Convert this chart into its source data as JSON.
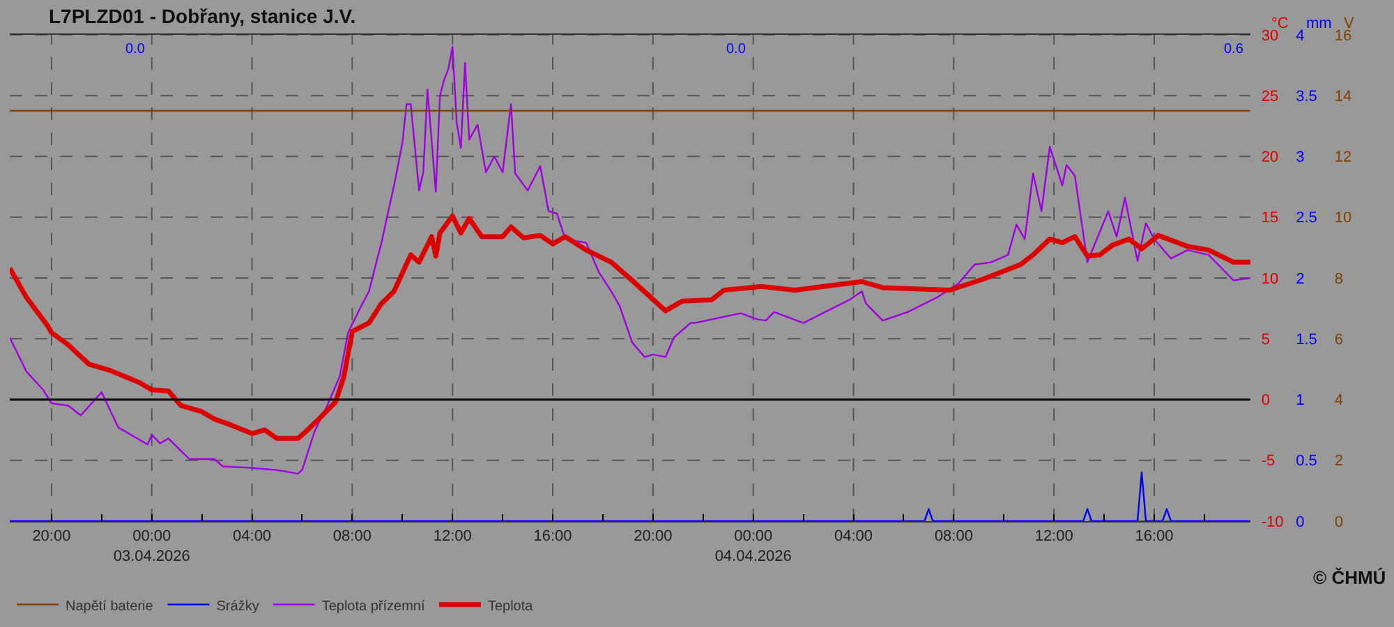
{
  "chart_data": {
    "type": "line",
    "title": "L7PLZD01 - Dobřany, stanice J.V.",
    "ylabel": "°C",
    "y2label": "mm",
    "y3label": "V",
    "xlim": [
      "2026-04-02T18:20",
      "2026-04-04T19:50"
    ],
    "xticks": [
      {
        "value": "2026-04-02T20:00",
        "label": "20:00"
      },
      {
        "value": "2026-04-02T22:00",
        "label": null
      },
      {
        "value": "2026-04-03T00:00",
        "label": "00:00\n03.04.2026"
      },
      {
        "value": "2026-04-03T02:00",
        "label": null
      },
      {
        "value": "2026-04-03T04:00",
        "label": "04:00"
      },
      {
        "value": "2026-04-03T06:00",
        "label": null
      },
      {
        "value": "2026-04-03T08:00",
        "label": "08:00"
      },
      {
        "value": "2026-04-03T10:00",
        "label": null
      },
      {
        "value": "2026-04-03T12:00",
        "label": "12:00"
      },
      {
        "value": "2026-04-03T14:00",
        "label": null
      },
      {
        "value": "2026-04-03T16:00",
        "label": "16:00"
      },
      {
        "value": "2026-04-03T18:00",
        "label": null
      },
      {
        "value": "2026-04-03T20:00",
        "label": "20:00"
      },
      {
        "value": "2026-04-03T22:00",
        "label": null
      },
      {
        "value": "2026-04-04T00:00",
        "label": "00:00\n04.04.2026"
      },
      {
        "value": "2026-04-04T02:00",
        "label": null
      },
      {
        "value": "2026-04-04T04:00",
        "label": "04:00"
      },
      {
        "value": "2026-04-04T06:00",
        "label": null
      },
      {
        "value": "2026-04-04T08:00",
        "label": "08:00"
      },
      {
        "value": "2026-04-04T10:00",
        "label": null
      },
      {
        "value": "2026-04-04T12:00",
        "label": "12:00"
      },
      {
        "value": "2026-04-04T14:00",
        "label": null
      },
      {
        "value": "2026-04-04T16:00",
        "label": "16:00"
      },
      {
        "value": "2026-04-04T18:00",
        "label": null
      }
    ],
    "ylim": [
      -10,
      30
    ],
    "yticks": [
      -10,
      -5,
      0,
      5,
      10,
      15,
      20,
      25,
      30
    ],
    "y2lim": [
      0,
      4
    ],
    "y2ticks": [
      0,
      0.5,
      1,
      1.5,
      2,
      2.5,
      3,
      3.5,
      4
    ],
    "y3lim": [
      0,
      16
    ],
    "y3ticks": [
      0,
      2,
      4,
      6,
      8,
      10,
      12,
      14,
      16
    ],
    "grid": true,
    "legend": "bottom left",
    "marker": "none",
    "line_style": "solid",
    "ref_lines": [
      {
        "axis": "y",
        "value": 0,
        "color": "#000000"
      }
    ],
    "series": [
      {
        "name": "Teplota",
        "color": "#dd0000",
        "x": [
          "2026-04-02T18:20",
          "2026-04-02T19:00",
          "2026-04-02T19:50",
          "2026-04-02T20:00",
          "2026-04-02T20:40",
          "2026-04-02T21:30",
          "2026-04-02T22:20",
          "2026-04-02T23:30",
          "2026-04-03T00:00",
          "2026-04-03T00:40",
          "2026-04-03T01:10",
          "2026-04-03T02:00",
          "2026-04-03T02:30",
          "2026-04-03T03:10",
          "2026-04-03T04:00",
          "2026-04-03T04:30",
          "2026-04-03T05:00",
          "2026-04-03T05:50",
          "2026-04-03T06:10",
          "2026-04-03T06:40",
          "2026-04-03T07:20",
          "2026-04-03T07:40",
          "2026-04-03T08:00",
          "2026-04-03T08:40",
          "2026-04-03T09:10",
          "2026-04-03T09:40",
          "2026-04-03T10:20",
          "2026-04-03T10:40",
          "2026-04-03T11:10",
          "2026-04-03T11:20",
          "2026-04-03T11:30",
          "2026-04-03T12:00",
          "2026-04-03T12:20",
          "2026-04-03T12:40",
          "2026-04-03T13:10",
          "2026-04-03T14:00",
          "2026-04-03T14:20",
          "2026-04-03T14:50",
          "2026-04-03T15:30",
          "2026-04-03T16:00",
          "2026-04-03T16:30",
          "2026-04-03T17:20",
          "2026-04-03T18:20",
          "2026-04-03T19:10",
          "2026-04-03T20:30",
          "2026-04-03T21:10",
          "2026-04-03T22:20",
          "2026-04-03T22:50",
          "2026-04-04T00:20",
          "2026-04-04T01:40",
          "2026-04-04T03:10",
          "2026-04-04T04:20",
          "2026-04-04T05:10",
          "2026-04-04T07:50",
          "2026-04-04T09:10",
          "2026-04-04T10:40",
          "2026-04-04T11:10",
          "2026-04-04T11:50",
          "2026-04-04T12:20",
          "2026-04-04T12:50",
          "2026-04-04T13:20",
          "2026-04-04T13:50",
          "2026-04-04T14:20",
          "2026-04-04T15:00",
          "2026-04-04T15:30",
          "2026-04-04T16:10",
          "2026-04-04T17:20",
          "2026-04-04T18:10",
          "2026-04-04T19:10",
          "2026-04-04T19:50"
        ],
        "values": [
          10.8,
          8.4,
          6.1,
          5.5,
          4.5,
          2.9,
          2.4,
          1.4,
          0.8,
          0.7,
          -0.5,
          -1.0,
          -1.6,
          -2.1,
          -2.8,
          -2.5,
          -3.2,
          -3.2,
          -2.6,
          -1.6,
          -0.2,
          1.9,
          5.6,
          6.3,
          7.9,
          8.9,
          11.9,
          11.3,
          13.4,
          11.8,
          13.7,
          15.1,
          13.7,
          14.9,
          13.4,
          13.4,
          14.2,
          13.3,
          13.5,
          12.8,
          13.4,
          12.3,
          11.3,
          9.8,
          7.3,
          8.1,
          8.2,
          9.0,
          9.3,
          9.0,
          9.4,
          9.7,
          9.2,
          9.0,
          9.9,
          11.1,
          11.9,
          13.2,
          12.9,
          13.4,
          11.8,
          11.9,
          12.7,
          13.2,
          12.4,
          13.5,
          12.6,
          12.3,
          11.3,
          11.3
        ]
      },
      {
        "name": "Teplota přízemní",
        "color": "#a000e0",
        "x": [
          "2026-04-02T18:20",
          "2026-04-02T19:00",
          "2026-04-02T19:40",
          "2026-04-02T20:00",
          "2026-04-02T20:40",
          "2026-04-02T21:10",
          "2026-04-02T22:00",
          "2026-04-02T22:40",
          "2026-04-02T23:50",
          "2026-04-03T00:00",
          "2026-04-03T00:20",
          "2026-04-03T00:40",
          "2026-04-03T01:30",
          "2026-04-03T02:30",
          "2026-04-03T02:50",
          "2026-04-03T03:50",
          "2026-04-03T05:00",
          "2026-04-03T05:50",
          "2026-04-03T06:00",
          "2026-04-03T06:30",
          "2026-04-03T07:00",
          "2026-04-03T07:30",
          "2026-04-03T07:50",
          "2026-04-03T08:20",
          "2026-04-03T08:40",
          "2026-04-03T09:00",
          "2026-04-03T09:10",
          "2026-04-03T09:20",
          "2026-04-03T09:40",
          "2026-04-03T10:00",
          "2026-04-03T10:10",
          "2026-04-03T10:20",
          "2026-04-03T10:40",
          "2026-04-03T10:50",
          "2026-04-03T11:00",
          "2026-04-03T11:20",
          "2026-04-03T11:30",
          "2026-04-03T11:40",
          "2026-04-03T11:50",
          "2026-04-03T12:00",
          "2026-04-03T12:10",
          "2026-04-03T12:20",
          "2026-04-03T12:30",
          "2026-04-03T12:40",
          "2026-04-03T13:00",
          "2026-04-03T13:20",
          "2026-04-03T13:40",
          "2026-04-03T14:00",
          "2026-04-03T14:20",
          "2026-04-03T14:30",
          "2026-04-03T15:00",
          "2026-04-03T15:30",
          "2026-04-03T15:50",
          "2026-04-03T16:10",
          "2026-04-03T16:30",
          "2026-04-03T17:20",
          "2026-04-03T17:50",
          "2026-04-03T18:20",
          "2026-04-03T18:40",
          "2026-04-03T19:10",
          "2026-04-03T19:40",
          "2026-04-03T20:00",
          "2026-04-03T20:30",
          "2026-04-03T20:50",
          "2026-04-03T21:30",
          "2026-04-03T21:40",
          "2026-04-03T23:30",
          "2026-04-04T00:10",
          "2026-04-04T00:30",
          "2026-04-04T00:50",
          "2026-04-04T02:00",
          "2026-04-04T03:50",
          "2026-04-04T04:20",
          "2026-04-04T04:30",
          "2026-04-04T05:10",
          "2026-04-04T06:10",
          "2026-04-04T07:20",
          "2026-04-04T08:10",
          "2026-04-04T08:50",
          "2026-04-04T09:30",
          "2026-04-04T10:10",
          "2026-04-04T10:30",
          "2026-04-04T10:50",
          "2026-04-04T11:10",
          "2026-04-04T11:30",
          "2026-04-04T11:50",
          "2026-04-04T12:20",
          "2026-04-04T12:30",
          "2026-04-04T12:50",
          "2026-04-04T13:20",
          "2026-04-04T14:10",
          "2026-04-04T14:30",
          "2026-04-04T14:50",
          "2026-04-04T15:20",
          "2026-04-04T15:40",
          "2026-04-04T16:00",
          "2026-04-04T16:40",
          "2026-04-04T17:20",
          "2026-04-04T18:10",
          "2026-04-04T19:10",
          "2026-04-04T19:50"
        ],
        "values": [
          5.1,
          2.3,
          0.8,
          -0.3,
          -0.5,
          -1.3,
          0.6,
          -2.3,
          -3.7,
          -2.9,
          -3.6,
          -3.2,
          -4.9,
          -4.9,
          -5.5,
          -5.6,
          -5.8,
          -6.1,
          -5.8,
          -2.6,
          -0.5,
          1.9,
          5.5,
          7.6,
          8.9,
          11.6,
          12.9,
          14.5,
          17.6,
          21.1,
          24.3,
          24.3,
          17.2,
          18.7,
          25.5,
          17.1,
          25.0,
          26.3,
          27.2,
          29.0,
          22.8,
          20.7,
          27.7,
          21.4,
          22.6,
          18.7,
          20.0,
          18.7,
          24.3,
          18.6,
          17.2,
          19.2,
          15.5,
          15.3,
          13.2,
          12.9,
          10.5,
          8.9,
          7.7,
          4.7,
          3.5,
          3.7,
          3.5,
          5.1,
          6.3,
          6.3,
          7.1,
          6.6,
          6.5,
          7.2,
          6.3,
          8.2,
          8.9,
          7.9,
          6.5,
          7.2,
          8.4,
          9.5,
          11.1,
          11.3,
          11.9,
          14.4,
          13.2,
          18.6,
          15.5,
          20.8,
          17.6,
          19.3,
          18.4,
          11.3,
          15.5,
          13.4,
          16.6,
          11.4,
          14.5,
          13.2,
          11.6,
          12.3,
          11.9,
          9.8,
          10.0
        ]
      },
      {
        "name": "Napětí baterie",
        "color": "#804000",
        "axis": "y3",
        "x": [
          "2026-04-02T18:20",
          "2026-04-04T19:50"
        ],
        "values": [
          13.5,
          13.5
        ]
      },
      {
        "name": "Srážky",
        "color": "#0000ff",
        "axis": "y2",
        "x": [
          "2026-04-02T18:20",
          "2026-04-04T06:50",
          "2026-04-04T07:00",
          "2026-04-04T07:10",
          "2026-04-04T13:10",
          "2026-04-04T13:20",
          "2026-04-04T13:30",
          "2026-04-04T15:20",
          "2026-04-04T15:30",
          "2026-04-04T15:40",
          "2026-04-04T16:20",
          "2026-04-04T16:30",
          "2026-04-04T16:40",
          "2026-04-04T19:50"
        ],
        "values": [
          0,
          0,
          0.1,
          0,
          0,
          0.1,
          0,
          0,
          0.4,
          0,
          0,
          0.1,
          0,
          0
        ]
      }
    ],
    "annotations": [
      "0.0",
      "0.0",
      "0.6",
      "© ČHMÚ"
    ]
  }
}
